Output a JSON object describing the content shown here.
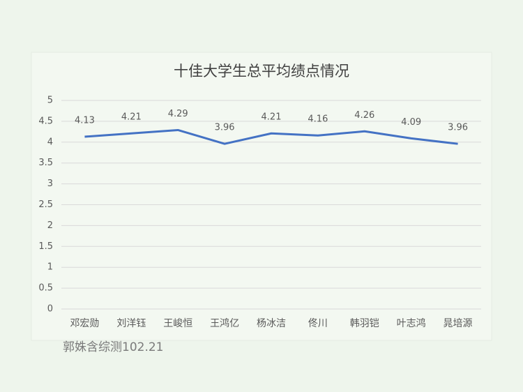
{
  "chart_data": {
    "type": "line",
    "title": "十佳大学生总平均绩点情况",
    "categories": [
      "邓宏勋",
      "刘洋钰",
      "王峻恒",
      "王鸿亿",
      "杨冰洁",
      "佟川",
      "韩羽铠",
      "叶志鸿",
      "晁培源"
    ],
    "values": [
      4.13,
      4.21,
      4.29,
      3.96,
      4.21,
      4.16,
      4.26,
      4.09,
      3.96
    ],
    "color": "#4472c4",
    "ylim": [
      0,
      5
    ],
    "yticks": [
      0,
      0.5,
      1,
      1.5,
      2,
      2.5,
      3,
      3.5,
      4,
      4.5,
      5
    ],
    "grid": true,
    "annotation": "郭姝含综测102.21"
  }
}
